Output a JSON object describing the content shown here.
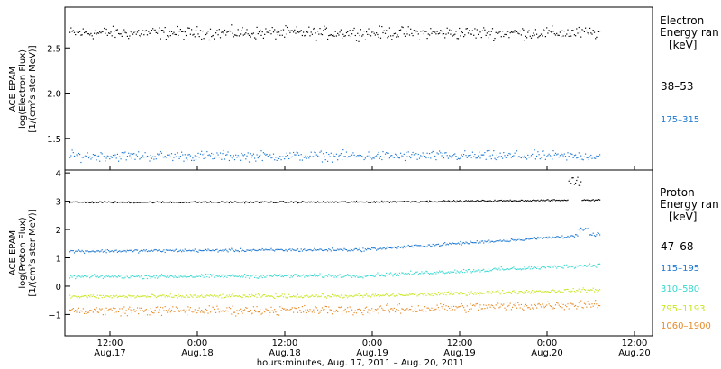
{
  "chart_data": [
    {
      "type": "scatter",
      "title": "",
      "ylabel_lines": [
        "ACE EPAM",
        "log(Electron Flux)",
        "[1/(cm²s ster MeV)]"
      ],
      "yticks": [
        "2.5",
        "2.0",
        "1.5"
      ],
      "ylim": [
        1.15,
        2.95
      ],
      "legend_title": [
        "Electron",
        "Energy  ran",
        "[keV]"
      ],
      "series": [
        {
          "name": "38–53",
          "color": "#000000",
          "level": 2.67,
          "spread": 0.05
        },
        {
          "name": "175–315",
          "color": "#1e78d2",
          "level": 1.31,
          "spread": 0.04
        }
      ]
    },
    {
      "type": "scatter",
      "title": "",
      "ylabel_lines": [
        "ACE EPAM",
        "log(Proton Flux)",
        "[1/(cm²s ster MeV)]"
      ],
      "yticks": [
        "4",
        "3",
        "2",
        "1",
        "0",
        "−1"
      ],
      "ylim": [
        -1.75,
        4.1
      ],
      "legend_title": [
        "Proton",
        "Energy  ran",
        "[keV]"
      ],
      "series": [
        {
          "name": "47–68",
          "color": "#000000",
          "start": 2.98,
          "end": 3.05,
          "spread": 0.02
        },
        {
          "name": "115–195",
          "color": "#1e78d2",
          "start": 1.25,
          "end": 1.75,
          "spread": 0.04
        },
        {
          "name": "310–580",
          "color": "#36d8d0",
          "start": 0.35,
          "end": 0.7,
          "spread": 0.05
        },
        {
          "name": "795–1193",
          "color": "#c8e61e",
          "start": -0.35,
          "end": -0.15,
          "spread": 0.05
        },
        {
          "name": "1060–1900",
          "color": "#e68a28",
          "start": -0.85,
          "end": -0.65,
          "spread": 0.12
        }
      ]
    }
  ],
  "x_axis": {
    "ticks": [
      {
        "time": "12:00",
        "date": "Aug.17"
      },
      {
        "time": "0:00",
        "date": "Aug.18"
      },
      {
        "time": "12:00",
        "date": "Aug.18"
      },
      {
        "time": "0:00",
        "date": "Aug.19"
      },
      {
        "time": "12:00",
        "date": "Aug.19"
      },
      {
        "time": "0:00",
        "date": "Aug.20"
      },
      {
        "time": "12:00",
        "date": "Aug.20"
      }
    ],
    "label": "hours:minutes, Aug. 17, 2011 – Aug. 20, 2011"
  }
}
